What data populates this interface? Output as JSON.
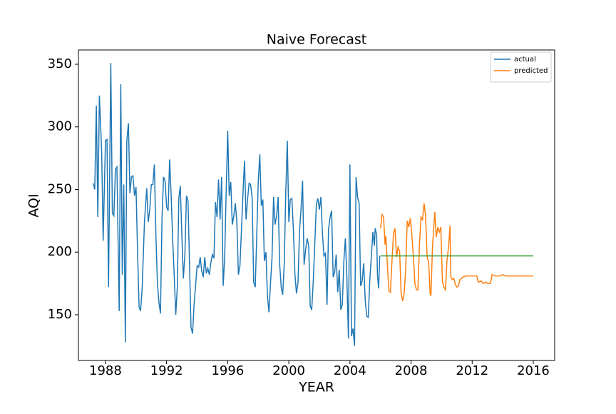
{
  "chart_data": {
    "type": "line",
    "title": "Naive Forecast",
    "x_label": "YEAR",
    "y_label": "AQI",
    "xlim": [
      1986.23,
      2017.4
    ],
    "xticks": [
      1988,
      1992,
      1996,
      2000,
      2004,
      2008,
      2012,
      2016
    ],
    "ylim": [
      113.5,
      361.4
    ],
    "yticks": [
      150,
      200,
      250,
      300,
      350
    ],
    "legend": "upper right",
    "series": [
      {
        "name": "actual",
        "color": "#1f77b4",
        "x": [
          1987.2,
          1987.3,
          1987.4,
          1987.5,
          1987.6,
          1987.75,
          1987.85,
          1988.0,
          1988.1,
          1988.2,
          1988.35,
          1988.45,
          1988.55,
          1988.65,
          1988.75,
          1988.9,
          1989.0,
          1989.1,
          1989.2,
          1989.3,
          1989.4,
          1989.5,
          1989.6,
          1989.7,
          1989.8,
          1989.9,
          1990.0,
          1990.1,
          1990.2,
          1990.3,
          1990.4,
          1990.55,
          1990.7,
          1990.8,
          1990.9,
          1991.0,
          1991.1,
          1991.2,
          1991.3,
          1991.4,
          1991.5,
          1991.6,
          1991.7,
          1991.8,
          1991.9,
          1992.0,
          1992.1,
          1992.2,
          1992.3,
          1992.4,
          1992.5,
          1992.6,
          1992.7,
          1992.8,
          1992.9,
          1993.0,
          1993.1,
          1993.2,
          1993.3,
          1993.4,
          1993.5,
          1993.6,
          1993.7,
          1993.8,
          1993.9,
          1994.0,
          1994.1,
          1994.2,
          1994.3,
          1994.4,
          1994.5,
          1994.6,
          1994.7,
          1994.8,
          1994.9,
          1995.0,
          1995.1,
          1995.2,
          1995.3,
          1995.4,
          1995.5,
          1995.6,
          1995.7,
          1995.8,
          1995.9,
          1996.0,
          1996.1,
          1996.2,
          1996.3,
          1996.4,
          1996.5,
          1996.6,
          1996.7,
          1996.8,
          1996.9,
          1997.0,
          1997.1,
          1997.2,
          1997.3,
          1997.4,
          1997.5,
          1997.6,
          1997.7,
          1997.8,
          1997.9,
          1998.0,
          1998.1,
          1998.2,
          1998.3,
          1998.4,
          1998.5,
          1998.6,
          1998.7,
          1998.8,
          1998.9,
          1999.0,
          1999.1,
          1999.2,
          1999.3,
          1999.4,
          1999.5,
          1999.6,
          1999.7,
          1999.8,
          1999.9,
          2000.0,
          2000.1,
          2000.2,
          2000.3,
          2000.4,
          2000.5,
          2000.6,
          2000.7,
          2000.8,
          2000.9,
          2001.0,
          2001.1,
          2001.2,
          2001.3,
          2001.4,
          2001.5,
          2001.6,
          2001.7,
          2001.8,
          2001.9,
          2002.0,
          2002.1,
          2002.2,
          2002.3,
          2002.4,
          2002.5,
          2002.6,
          2002.7,
          2002.8,
          2002.9,
          2003.0,
          2003.1,
          2003.2,
          2003.3,
          2003.4,
          2003.5,
          2003.6,
          2003.7,
          2003.8,
          2003.9,
          2004.0,
          2004.1,
          2004.2,
          2004.3,
          2004.4,
          2004.5,
          2004.6,
          2004.7,
          2004.8,
          2004.9,
          2005.0,
          2005.1,
          2005.2,
          2005.3,
          2005.4,
          2005.5,
          2005.6,
          2005.65,
          2005.75,
          2005.8,
          2005.88,
          2005.95
        ],
        "values": [
          255,
          250,
          317,
          228,
          325,
          280,
          209,
          289,
          290,
          172,
          351,
          231,
          229,
          266,
          268,
          153,
          334,
          182,
          254,
          128,
          289,
          303,
          247,
          260,
          261,
          245,
          252,
          201,
          156,
          153,
          171,
          224,
          251,
          224,
          234,
          254,
          254,
          270,
          213,
          175,
          160,
          151,
          226,
          260,
          257,
          236,
          233,
          274,
          245,
          210,
          181,
          150,
          172,
          243,
          253,
          213,
          179,
          199,
          245,
          241,
          191,
          140,
          135,
          158,
          174,
          189,
          188,
          196,
          185,
          180,
          196,
          183,
          187,
          182,
          192,
          198,
          195,
          240,
          228,
          258,
          226,
          260,
          173,
          195,
          247,
          297,
          245,
          256,
          222,
          229,
          239,
          224,
          182,
          189,
          218,
          247,
          273,
          226,
          242,
          255,
          254,
          243,
          176,
          172,
          213,
          256,
          278,
          237,
          242,
          193,
          200,
          165,
          152,
          175,
          195,
          244,
          222,
          229,
          244,
          191,
          172,
          166,
          191,
          247,
          289,
          224,
          242,
          243,
          218,
          182,
          167,
          176,
          217,
          234,
          257,
          190,
          202,
          211,
          205,
          157,
          154,
          177,
          206,
          238,
          243,
          234,
          244,
          214,
          197,
          199,
          158,
          218,
          228,
          233,
          180,
          184,
          198,
          168,
          186,
          154,
          158,
          193,
          211,
          180,
          131,
          270,
          133,
          139,
          125,
          260,
          244,
          239,
          173,
          177,
          191,
          161,
          149,
          148,
          178,
          196,
          216,
          205,
          219,
          214,
          182,
          171,
          197
        ]
      },
      {
        "name": "predicted",
        "color": "#ff7f0e",
        "x": [
          2006.0,
          2006.1,
          2006.2,
          2006.3,
          2006.35,
          2006.45,
          2006.55,
          2006.65,
          2006.75,
          2006.85,
          2006.95,
          2007.05,
          2007.15,
          2007.25,
          2007.35,
          2007.45,
          2007.55,
          2007.65,
          2007.75,
          2007.85,
          2007.95,
          2008.05,
          2008.15,
          2008.25,
          2008.35,
          2008.45,
          2008.55,
          2008.65,
          2008.75,
          2008.85,
          2008.95,
          2009.05,
          2009.15,
          2009.25,
          2009.3,
          2009.4,
          2009.55,
          2009.65,
          2009.75,
          2009.85,
          2009.95,
          2010.05,
          2010.15,
          2010.25,
          2010.35,
          2010.45,
          2010.55,
          2010.6,
          2010.7,
          2010.8,
          2010.9,
          2011.0,
          2011.1,
          2011.2,
          2011.4,
          2011.6,
          2012.0,
          2012.3,
          2012.4,
          2012.6,
          2012.7,
          2012.9,
          2013.0,
          2013.2,
          2013.3,
          2013.5,
          2013.8,
          2014.0,
          2014.2,
          2014.5,
          2015.0,
          2015.5,
          2016.0
        ],
        "values": [
          219,
          230,
          228,
          206,
          213,
          190,
          169,
          168,
          193,
          215,
          219,
          196,
          204,
          201,
          167,
          161,
          167,
          186,
          225,
          220,
          227,
          214,
          197,
          175,
          170,
          170,
          206,
          228,
          226,
          239,
          229,
          196,
          192,
          167,
          165,
          204,
          232,
          212,
          220,
          216,
          220,
          177,
          172,
          170,
          193,
          204,
          221,
          180,
          178,
          179,
          174,
          172,
          173,
          178,
          180,
          181,
          181,
          181,
          176,
          177,
          175,
          176,
          175,
          175,
          182,
          181,
          181,
          182,
          181,
          181,
          181,
          181,
          181
        ]
      },
      {
        "color": "#2ca02c",
        "x": [
          2006.0,
          2016.0
        ],
        "values": [
          197,
          197
        ]
      }
    ]
  }
}
